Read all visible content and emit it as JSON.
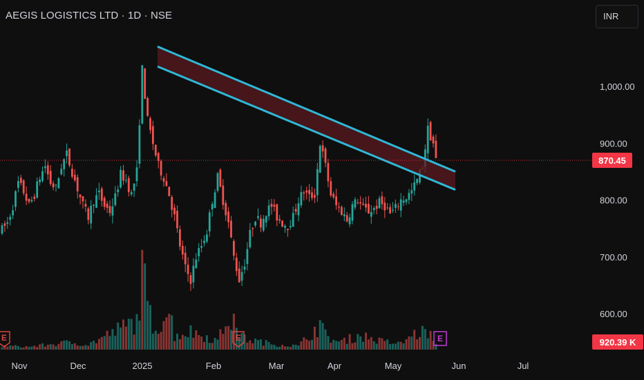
{
  "header": {
    "title": "AEGIS LOGISTICS LTD · 1D · NSE",
    "currency": "INR"
  },
  "colors": {
    "background": "#0f0f0f",
    "up": "#26a69a",
    "down": "#ef5350",
    "channel": "#2fb8d6",
    "channel_fill": "#5a1a20",
    "price_badge": "#f23645",
    "earnings_red": "#d7463f",
    "earnings_purple": "#c43ad6"
  },
  "chart_data": {
    "type": "candlestick",
    "y_ticks": [
      "1,000.00",
      "900.00",
      "800.00",
      "700.00",
      "600.00"
    ],
    "y_tick_values": [
      1000,
      900,
      800,
      700,
      600
    ],
    "x_ticks": [
      "Nov",
      "Dec",
      "2025",
      "Feb",
      "Mar",
      "Apr",
      "May",
      "Jun",
      "Jul"
    ],
    "last_price": {
      "value": 870.45,
      "label": "870.45"
    },
    "volume_label": "920.39 K",
    "earnings_markers": [
      "E",
      "E",
      "E"
    ],
    "price_path": [
      [
        0,
        748
      ],
      [
        2,
        760
      ],
      [
        4,
        790
      ],
      [
        6,
        830
      ],
      [
        8,
        815
      ],
      [
        10,
        790
      ],
      [
        12,
        810
      ],
      [
        14,
        840
      ],
      [
        16,
        860
      ],
      [
        18,
        830
      ],
      [
        20,
        820
      ],
      [
        22,
        860
      ],
      [
        24,
        880
      ],
      [
        26,
        850
      ],
      [
        28,
        820
      ],
      [
        30,
        790
      ],
      [
        32,
        770
      ],
      [
        34,
        800
      ],
      [
        36,
        810
      ],
      [
        38,
        790
      ],
      [
        40,
        780
      ],
      [
        42,
        805
      ],
      [
        44,
        845
      ],
      [
        46,
        835
      ],
      [
        48,
        810
      ],
      [
        50,
        850
      ],
      [
        52,
        1030
      ],
      [
        54,
        940
      ],
      [
        56,
        900
      ],
      [
        58,
        860
      ],
      [
        60,
        840
      ],
      [
        62,
        810
      ],
      [
        64,
        770
      ],
      [
        66,
        720
      ],
      [
        68,
        680
      ],
      [
        70,
        660
      ],
      [
        72,
        700
      ],
      [
        74,
        720
      ],
      [
        76,
        745
      ],
      [
        78,
        800
      ],
      [
        80,
        840
      ],
      [
        82,
        800
      ],
      [
        84,
        760
      ],
      [
        86,
        700
      ],
      [
        88,
        660
      ],
      [
        90,
        690
      ],
      [
        92,
        740
      ],
      [
        94,
        770
      ],
      [
        96,
        760
      ],
      [
        98,
        780
      ],
      [
        100,
        790
      ],
      [
        102,
        770
      ],
      [
        104,
        760
      ],
      [
        106,
        755
      ],
      [
        108,
        770
      ],
      [
        110,
        800
      ],
      [
        112,
        815
      ],
      [
        114,
        805
      ],
      [
        116,
        810
      ],
      [
        118,
        900
      ],
      [
        120,
        860
      ],
      [
        122,
        810
      ],
      [
        124,
        790
      ],
      [
        126,
        780
      ],
      [
        128,
        765
      ],
      [
        130,
        790
      ],
      [
        132,
        800
      ],
      [
        134,
        785
      ],
      [
        136,
        780
      ],
      [
        138,
        785
      ],
      [
        140,
        795
      ],
      [
        142,
        790
      ],
      [
        144,
        775
      ],
      [
        146,
        785
      ],
      [
        148,
        800
      ],
      [
        150,
        805
      ],
      [
        152,
        815
      ],
      [
        154,
        835
      ],
      [
        156,
        860
      ],
      [
        158,
        925
      ],
      [
        160,
        900
      ],
      [
        161,
        870
      ]
    ],
    "volume_path": [
      [
        0,
        0.05
      ],
      [
        10,
        0.04
      ],
      [
        25,
        0.1
      ],
      [
        32,
        0.07
      ],
      [
        50,
        0.4
      ],
      [
        52,
        1.0
      ],
      [
        53,
        0.85
      ],
      [
        55,
        0.45
      ],
      [
        57,
        0.3
      ],
      [
        62,
        0.55
      ],
      [
        64,
        0.2
      ],
      [
        70,
        0.25
      ],
      [
        76,
        0.18
      ],
      [
        80,
        0.12
      ],
      [
        84,
        0.45
      ],
      [
        90,
        0.15
      ],
      [
        100,
        0.08
      ],
      [
        110,
        0.05
      ],
      [
        118,
        0.35
      ],
      [
        120,
        0.2
      ],
      [
        125,
        0.1
      ],
      [
        133,
        0.2
      ],
      [
        140,
        0.12
      ],
      [
        148,
        0.08
      ],
      [
        152,
        0.2
      ],
      [
        158,
        0.26
      ],
      [
        161,
        0.06
      ]
    ],
    "channel_upper_start": 1070,
    "channel_upper_end": 850,
    "channel_lower_start": 1035,
    "channel_lower_end": 818
  }
}
